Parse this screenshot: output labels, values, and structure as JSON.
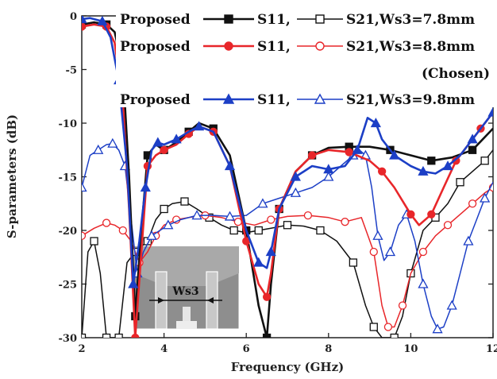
{
  "chart_data": {
    "type": "line",
    "xlabel": "Frequency (GHz)",
    "ylabel": "S-parameters (dB)",
    "xlim": [
      2,
      12
    ],
    "ylim": [
      -30,
      0
    ],
    "xticks": [
      2,
      4,
      6,
      8,
      10,
      12
    ],
    "yticks": [
      0,
      -5,
      -10,
      -15,
      -20,
      -25,
      -30
    ],
    "legend": {
      "placement": "top-right",
      "rows": [
        {
          "prefix": "Proposed",
          "s11_label": "S11,",
          "s21_label": "S21,Ws3=7.8mm",
          "color": "#111111",
          "marker": "square"
        },
        {
          "prefix": "Proposed",
          "s11_label": "S11,",
          "s21_label": "S21,Ws3=8.8mm",
          "color": "#e8262a",
          "marker": "circle",
          "note": "(Chosen)"
        },
        {
          "prefix": "Proposed",
          "s11_label": "S11,",
          "s21_label": "S21,Ws3=9.8mm",
          "color": "#1c3fc6",
          "marker": "triangle"
        }
      ]
    },
    "inset": {
      "label": "Ws3"
    },
    "series": [
      {
        "name": "S11, Ws3=7.8mm",
        "kind": "S11",
        "color": "#111111",
        "marker": "square",
        "filled": true,
        "x": [
          2.0,
          2.3,
          2.6,
          2.8,
          3.0,
          3.15,
          3.3,
          3.45,
          3.6,
          3.8,
          4.0,
          4.3,
          4.6,
          4.85,
          5.2,
          5.6,
          6.0,
          6.3,
          6.5,
          6.6,
          6.8,
          7.2,
          7.6,
          8.0,
          8.5,
          9.0,
          9.5,
          10.0,
          10.5,
          11.0,
          11.5,
          12.0
        ],
        "y": [
          -0.8,
          -0.6,
          -0.8,
          -1.5,
          -5,
          -15,
          -28,
          -20,
          -13,
          -12,
          -12.5,
          -11.8,
          -10.8,
          -10.0,
          -10.5,
          -13,
          -20,
          -27,
          -30,
          -25,
          -18,
          -14.5,
          -13,
          -12.3,
          -12.2,
          -12.2,
          -12.5,
          -13.0,
          -13.5,
          -13.2,
          -12.5,
          -10.5
        ]
      },
      {
        "name": "S21, Ws3=7.8mm",
        "kind": "S21",
        "color": "#111111",
        "marker": "square",
        "filled": false,
        "x": [
          2.0,
          2.15,
          2.3,
          2.45,
          2.6,
          2.75,
          2.9,
          3.1,
          3.3,
          3.45,
          3.6,
          3.8,
          4.0,
          4.2,
          4.5,
          4.8,
          5.1,
          5.4,
          5.7,
          6.0,
          6.3,
          6.6,
          7.0,
          7.4,
          7.8,
          8.2,
          8.6,
          8.9,
          9.1,
          9.3,
          9.6,
          9.8,
          10.0,
          10.3,
          10.6,
          10.9,
          11.2,
          11.5,
          11.8,
          12.0
        ],
        "y": [
          -30,
          -22,
          -21,
          -24,
          -30,
          -30,
          -30,
          -23,
          -22,
          -21.5,
          -21,
          -19,
          -18,
          -17.5,
          -17.3,
          -18,
          -18.8,
          -19.5,
          -20,
          -20.2,
          -20,
          -19.8,
          -19.5,
          -19.6,
          -20,
          -21,
          -23,
          -27,
          -29,
          -30,
          -30,
          -28,
          -24,
          -20,
          -18.8,
          -17.5,
          -15.5,
          -14.5,
          -13.5,
          -12.5
        ]
      },
      {
        "name": "S11, Ws3=8.8mm",
        "kind": "S11",
        "color": "#e8262a",
        "marker": "circle",
        "filled": true,
        "x": [
          2.0,
          2.3,
          2.6,
          2.8,
          3.0,
          3.15,
          3.3,
          3.45,
          3.6,
          3.8,
          4.0,
          4.3,
          4.6,
          4.85,
          5.2,
          5.6,
          6.0,
          6.3,
          6.5,
          6.6,
          6.8,
          7.2,
          7.6,
          8.0,
          8.5,
          9.0,
          9.3,
          9.6,
          10.0,
          10.2,
          10.5,
          10.8,
          11.1,
          11.4,
          11.7,
          12.0
        ],
        "y": [
          -1.0,
          -0.8,
          -1.0,
          -2.5,
          -8,
          -18,
          -30,
          -22,
          -14,
          -13,
          -12.5,
          -12,
          -11,
          -10.3,
          -10.8,
          -14,
          -21,
          -25,
          -26.2,
          -24,
          -18,
          -14.5,
          -13,
          -12.5,
          -12.7,
          -13.5,
          -14.5,
          -16,
          -18.5,
          -19.5,
          -18.5,
          -16,
          -13.5,
          -12,
          -10.5,
          -9
        ]
      },
      {
        "name": "S21, Ws3=8.8mm",
        "kind": "S21",
        "color": "#e8262a",
        "marker": "circle",
        "filled": false,
        "x": [
          2.0,
          2.3,
          2.6,
          2.8,
          3.0,
          3.2,
          3.4,
          3.6,
          3.8,
          4.0,
          4.3,
          4.6,
          5.0,
          5.4,
          5.8,
          6.2,
          6.6,
          7.0,
          7.5,
          8.0,
          8.4,
          8.8,
          9.1,
          9.3,
          9.45,
          9.6,
          9.8,
          10.0,
          10.3,
          10.6,
          10.9,
          11.2,
          11.5,
          11.8,
          12.0
        ],
        "y": [
          -20.5,
          -19.8,
          -19.3,
          -19.5,
          -20,
          -21,
          -23,
          -22,
          -20.5,
          -19.5,
          -19,
          -18.8,
          -18.6,
          -18.8,
          -19.2,
          -19.5,
          -19.0,
          -18.7,
          -18.6,
          -18.8,
          -19.2,
          -18.8,
          -22,
          -27,
          -29,
          -29,
          -27,
          -24,
          -22,
          -20.5,
          -19.5,
          -18.5,
          -17.5,
          -16.5,
          -16
        ]
      },
      {
        "name": "S11, Ws3=9.8mm",
        "kind": "S11",
        "color": "#1c3fc6",
        "marker": "triangle",
        "filled": true,
        "x": [
          2.0,
          2.2,
          2.5,
          2.7,
          2.9,
          3.1,
          3.25,
          3.4,
          3.55,
          3.7,
          3.85,
          4.0,
          4.3,
          4.6,
          4.85,
          5.2,
          5.6,
          6.0,
          6.3,
          6.5,
          6.6,
          6.8,
          7.2,
          7.6,
          8.0,
          8.4,
          8.7,
          8.95,
          9.15,
          9.3,
          9.6,
          10.0,
          10.3,
          10.6,
          10.9,
          11.2,
          11.5,
          11.8,
          12.0
        ],
        "y": [
          -0.3,
          -0.2,
          -0.5,
          -2,
          -6,
          -14,
          -25,
          -21,
          -16,
          -12.5,
          -11.8,
          -12,
          -11.5,
          -10.8,
          -10.3,
          -10.8,
          -14,
          -20,
          -23,
          -23.5,
          -22,
          -18,
          -15,
          -14,
          -14.3,
          -14,
          -12.5,
          -9.5,
          -10,
          -11.5,
          -13,
          -14,
          -14.5,
          -14.7,
          -14,
          -13,
          -11.5,
          -10,
          -9
        ]
      },
      {
        "name": "S21, Ws3=9.8mm",
        "kind": "S21",
        "color": "#1c3fc6",
        "marker": "triangle",
        "filled": false,
        "x": [
          2.0,
          2.2,
          2.4,
          2.6,
          2.75,
          2.9,
          3.05,
          3.2,
          3.35,
          3.5,
          3.7,
          3.9,
          4.1,
          4.4,
          4.8,
          5.2,
          5.6,
          6.0,
          6.4,
          6.8,
          7.2,
          7.6,
          8.0,
          8.3,
          8.6,
          8.75,
          8.9,
          9.05,
          9.2,
          9.35,
          9.5,
          9.7,
          9.9,
          10.1,
          10.3,
          10.5,
          10.65,
          10.8,
          11.0,
          11.2,
          11.4,
          11.6,
          11.8,
          12.0
        ],
        "y": [
          -16,
          -13,
          -12.5,
          -12,
          -11.9,
          -12.5,
          -14,
          -19,
          -24,
          -22,
          -20.5,
          -20,
          -19.5,
          -19,
          -18.6,
          -18.6,
          -18.7,
          -18.6,
          -17.5,
          -17,
          -16.5,
          -16,
          -15,
          -14,
          -13,
          -12.5,
          -13,
          -16,
          -20.5,
          -22.8,
          -22,
          -19.5,
          -18.5,
          -21,
          -25,
          -28,
          -29.2,
          -29,
          -27,
          -24,
          -21,
          -19,
          -17,
          -15.5
        ]
      }
    ]
  }
}
